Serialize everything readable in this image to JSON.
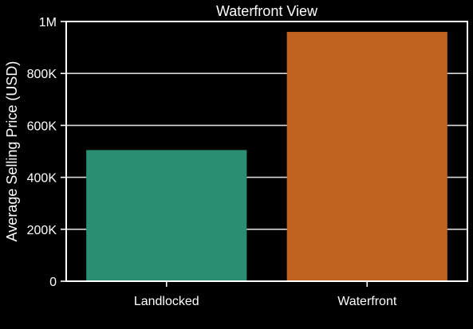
{
  "chart_data": {
    "type": "bar",
    "title": "Waterfront View",
    "xlabel": "",
    "ylabel": "Average Selling Price (USD)",
    "categories": [
      "Landlocked",
      "Waterfront"
    ],
    "values": [
      505000,
      960000
    ],
    "ylim": [
      0,
      1000000
    ],
    "yticks": [
      {
        "value": 0,
        "label": "0"
      },
      {
        "value": 200000,
        "label": "200K"
      },
      {
        "value": 400000,
        "label": "400K"
      },
      {
        "value": 600000,
        "label": "600K"
      },
      {
        "value": 800000,
        "label": "800K"
      },
      {
        "value": 1000000,
        "label": "1M"
      }
    ],
    "grid": "horizontal",
    "colors": [
      "#2a8f72",
      "#bf631f"
    ],
    "background": "#000000",
    "foreground": "#ffffff"
  }
}
